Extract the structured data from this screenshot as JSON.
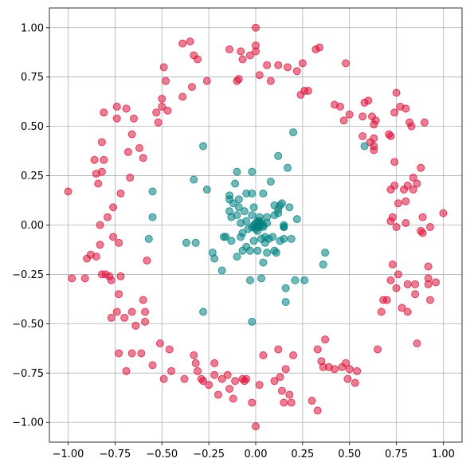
{
  "chart_data": {
    "type": "scatter",
    "title": "",
    "xlabel": "",
    "ylabel": "",
    "xlim": [
      -1.1,
      1.1
    ],
    "ylim": [
      -1.1,
      1.1
    ],
    "grid": true,
    "xticks": [
      -1.0,
      -0.75,
      -0.5,
      -0.25,
      0.0,
      0.25,
      0.5,
      0.75,
      1.0
    ],
    "yticks": [
      1.0,
      0.75,
      0.5,
      0.25,
      0.0,
      -0.25,
      -0.5,
      -0.75,
      -1.0
    ],
    "xtick_labels": [
      "−1.00",
      "−0.75",
      "−0.50",
      "−0.25",
      "0.00",
      "0.25",
      "0.50",
      "0.75",
      "1.00"
    ],
    "ytick_labels": [
      "1.00",
      "0.75",
      "0.50",
      "0.25",
      "0.00",
      "−0.25",
      "−0.50",
      "−0.75",
      "−1.00"
    ],
    "series": [
      {
        "color": "#dc143c",
        "points": [
          [
            -1.0,
            0.17
          ],
          [
            -0.98,
            -0.27
          ],
          [
            -0.91,
            -0.27
          ],
          [
            -0.9,
            -0.17
          ],
          [
            -0.88,
            -0.15
          ],
          [
            -0.86,
            0.33
          ],
          [
            -0.85,
            0.26
          ],
          [
            -0.85,
            -0.16
          ],
          [
            -0.84,
            0.21
          ],
          [
            -0.83,
            0.0
          ],
          [
            -0.83,
            -0.1
          ],
          [
            -0.82,
            0.42
          ],
          [
            -0.82,
            0.27
          ],
          [
            -0.82,
            -0.25
          ],
          [
            -0.81,
            0.57
          ],
          [
            -0.81,
            0.33
          ],
          [
            -0.8,
            -0.25
          ],
          [
            -0.79,
            0.04
          ],
          [
            -0.78,
            -0.26
          ],
          [
            -0.77,
            -0.28
          ],
          [
            -0.77,
            -0.47
          ],
          [
            -0.76,
            0.09
          ],
          [
            -0.76,
            -0.06
          ],
          [
            -0.74,
            0.6
          ],
          [
            -0.74,
            0.54
          ],
          [
            -0.74,
            -0.44
          ],
          [
            -0.73,
            -0.09
          ],
          [
            -0.73,
            -0.35
          ],
          [
            -0.73,
            -0.65
          ],
          [
            -0.72,
            0.16
          ],
          [
            -0.72,
            -0.26
          ],
          [
            -0.7,
            -0.47
          ],
          [
            -0.69,
            0.59
          ],
          [
            -0.69,
            -0.74
          ],
          [
            -0.68,
            0.37
          ],
          [
            -0.67,
            0.24
          ],
          [
            -0.66,
            0.46
          ],
          [
            -0.66,
            -0.44
          ],
          [
            -0.66,
            -0.65
          ],
          [
            -0.65,
            0.54
          ],
          [
            -0.64,
            -0.51
          ],
          [
            -0.62,
            0.39
          ],
          [
            -0.61,
            -0.65
          ],
          [
            -0.6,
            0.34
          ],
          [
            -0.6,
            -0.38
          ],
          [
            -0.59,
            -0.44
          ],
          [
            -0.59,
            -0.49
          ],
          [
            -0.58,
            -0.18
          ],
          [
            -0.55,
            -0.71
          ],
          [
            -0.53,
            0.57
          ],
          [
            -0.52,
            0.52
          ],
          [
            -0.51,
            -0.6
          ],
          [
            -0.5,
            0.64
          ],
          [
            -0.5,
            0.6
          ],
          [
            -0.49,
            0.8
          ],
          [
            -0.49,
            -0.78
          ],
          [
            -0.48,
            0.73
          ],
          [
            -0.47,
            0.58
          ],
          [
            -0.46,
            -0.63
          ],
          [
            -0.45,
            -0.74
          ],
          [
            -0.39,
            0.92
          ],
          [
            -0.39,
            0.65
          ],
          [
            -0.38,
            -0.78
          ],
          [
            -0.35,
            0.93
          ],
          [
            -0.34,
            0.7
          ],
          [
            -0.33,
            0.86
          ],
          [
            -0.33,
            -0.66
          ],
          [
            -0.32,
            -0.7
          ],
          [
            -0.31,
            -0.74
          ],
          [
            -0.31,
            0.84
          ],
          [
            -0.29,
            -0.78
          ],
          [
            -0.28,
            -0.79
          ],
          [
            -0.26,
            0.73
          ],
          [
            -0.25,
            -0.81
          ],
          [
            -0.22,
            -0.7
          ],
          [
            -0.22,
            -0.76
          ],
          [
            -0.2,
            -0.86
          ],
          [
            -0.18,
            -0.78
          ],
          [
            -0.15,
            -0.76
          ],
          [
            -0.14,
            -0.83
          ],
          [
            -0.14,
            0.89
          ],
          [
            -0.12,
            -0.88
          ],
          [
            -0.11,
            -0.79
          ],
          [
            -0.1,
            0.73
          ],
          [
            -0.09,
            0.74
          ],
          [
            -0.08,
            0.88
          ],
          [
            -0.07,
            0.84
          ],
          [
            -0.07,
            -0.78
          ],
          [
            -0.06,
            -0.79
          ],
          [
            -0.05,
            -0.78
          ],
          [
            -0.03,
            0.86
          ],
          [
            -0.02,
            -0.9
          ],
          [
            0.0,
            0.88
          ],
          [
            0.0,
            0.91
          ],
          [
            0.0,
            -1.02
          ],
          [
            0.0,
            1.0
          ],
          [
            0.02,
            -0.81
          ],
          [
            0.02,
            0.76
          ],
          [
            0.04,
            -0.66
          ],
          [
            0.06,
            0.81
          ],
          [
            0.08,
            0.73
          ],
          [
            0.1,
            -0.79
          ],
          [
            0.12,
            -0.63
          ],
          [
            0.12,
            0.81
          ],
          [
            0.13,
            -0.77
          ],
          [
            0.14,
            -0.84
          ],
          [
            0.15,
            -0.9
          ],
          [
            0.16,
            -0.73
          ],
          [
            0.17,
            0.8
          ],
          [
            0.18,
            -0.86
          ],
          [
            0.19,
            -0.9
          ],
          [
            0.2,
            -0.66
          ],
          [
            0.22,
            0.78
          ],
          [
            0.24,
            0.66
          ],
          [
            0.25,
            0.82
          ],
          [
            0.26,
            0.68
          ],
          [
            0.28,
            0.68
          ],
          [
            0.3,
            -0.89
          ],
          [
            0.32,
            0.89
          ],
          [
            0.33,
            -0.63
          ],
          [
            0.33,
            -0.94
          ],
          [
            0.34,
            0.9
          ],
          [
            0.35,
            -0.69
          ],
          [
            0.36,
            -0.72
          ],
          [
            0.37,
            -0.58
          ],
          [
            0.39,
            -0.72
          ],
          [
            0.42,
            -0.73
          ],
          [
            0.42,
            0.61
          ],
          [
            0.45,
            0.6
          ],
          [
            0.46,
            -0.72
          ],
          [
            0.47,
            0.53
          ],
          [
            0.48,
            -0.7
          ],
          [
            0.48,
            0.82
          ],
          [
            0.49,
            -0.78
          ],
          [
            0.5,
            0.56
          ],
          [
            0.5,
            -0.73
          ],
          [
            0.53,
            -0.8
          ],
          [
            0.54,
            -0.74
          ],
          [
            0.57,
            0.55
          ],
          [
            0.57,
            0.45
          ],
          [
            0.58,
            0.62
          ],
          [
            0.6,
            0.63
          ],
          [
            0.61,
            0.42
          ],
          [
            0.62,
            0.55
          ],
          [
            0.63,
            0.51
          ],
          [
            0.63,
            0.4
          ],
          [
            0.63,
            0.44
          ],
          [
            0.63,
            0.38
          ],
          [
            0.64,
            0.53
          ],
          [
            0.65,
            -0.63
          ],
          [
            0.67,
            -0.44
          ],
          [
            0.68,
            -0.38
          ],
          [
            0.7,
            -0.38
          ],
          [
            0.71,
            0.46
          ],
          [
            0.72,
            0.18
          ],
          [
            0.72,
            -0.28
          ],
          [
            0.72,
            0.45
          ],
          [
            0.72,
            0.02
          ],
          [
            0.73,
            0.04
          ],
          [
            0.73,
            -0.2
          ],
          [
            0.74,
            0.57
          ],
          [
            0.74,
            0.2
          ],
          [
            0.74,
            0.32
          ],
          [
            0.75,
            -0.01
          ],
          [
            0.75,
            -0.32
          ],
          [
            0.75,
            0.67
          ],
          [
            0.76,
            0.11
          ],
          [
            0.76,
            -0.25
          ],
          [
            0.77,
            0.6
          ],
          [
            0.78,
            -0.42
          ],
          [
            0.79,
            0.18
          ],
          [
            0.8,
            0.59
          ],
          [
            0.8,
            0.12
          ],
          [
            0.8,
            0.01
          ],
          [
            0.81,
            -0.3
          ],
          [
            0.81,
            -0.44
          ],
          [
            0.81,
            0.2
          ],
          [
            0.82,
            0.52
          ],
          [
            0.83,
            0.5
          ],
          [
            0.84,
            0.24
          ],
          [
            0.84,
            0.18
          ],
          [
            0.85,
            -0.35
          ],
          [
            0.85,
            -0.3
          ],
          [
            0.86,
            0.21
          ],
          [
            0.86,
            -0.6
          ],
          [
            0.88,
            0.29
          ],
          [
            0.88,
            -0.03
          ],
          [
            0.89,
            -0.04
          ],
          [
            0.89,
            0.04
          ],
          [
            0.9,
            0.52
          ],
          [
            0.92,
            -0.21
          ],
          [
            0.92,
            -0.27
          ],
          [
            0.92,
            -0.3
          ],
          [
            0.93,
            -0.01
          ],
          [
            0.93,
            -0.38
          ],
          [
            0.96,
            -0.29
          ],
          [
            1.0,
            0.06
          ]
        ]
      },
      {
        "color": "#008080",
        "points": [
          [
            -0.57,
            -0.07
          ],
          [
            -0.55,
            0.04
          ],
          [
            -0.55,
            0.17
          ],
          [
            -0.37,
            -0.09
          ],
          [
            -0.33,
            0.23
          ],
          [
            -0.32,
            -0.09
          ],
          [
            -0.26,
            0.18
          ],
          [
            -0.28,
            0.4
          ],
          [
            -0.28,
            -0.44
          ],
          [
            -0.23,
            -0.14
          ],
          [
            -0.22,
            -0.17
          ],
          [
            -0.18,
            -0.23
          ],
          [
            -0.17,
            -0.06
          ],
          [
            -0.16,
            -0.06
          ],
          [
            -0.14,
            0.15
          ],
          [
            -0.14,
            0.13
          ],
          [
            -0.14,
            0.07
          ],
          [
            -0.13,
            -0.08
          ],
          [
            -0.13,
            0.04
          ],
          [
            -0.12,
            0.11
          ],
          [
            -0.11,
            0.21
          ],
          [
            -0.1,
            0.27
          ],
          [
            -0.1,
            -0.16
          ],
          [
            -0.1,
            0.05
          ],
          [
            -0.09,
            0.13
          ],
          [
            -0.09,
            0.09
          ],
          [
            -0.08,
            0.01
          ],
          [
            -0.08,
            -0.06
          ],
          [
            -0.07,
            -0.13
          ],
          [
            -0.07,
            -0.04
          ],
          [
            -0.06,
            0.07
          ],
          [
            -0.05,
            0.16
          ],
          [
            -0.05,
            0.02
          ],
          [
            -0.05,
            -0.11
          ],
          [
            -0.04,
            -0.02
          ],
          [
            -0.03,
            -0.13
          ],
          [
            -0.03,
            -0.28
          ],
          [
            -0.02,
            0.27
          ],
          [
            -0.02,
            0.16
          ],
          [
            -0.02,
            0.05
          ],
          [
            -0.02,
            -0.01
          ],
          [
            -0.02,
            -0.49
          ],
          [
            -0.01,
            0.09
          ],
          [
            -0.01,
            0.0
          ],
          [
            -0.01,
            -0.08
          ],
          [
            0.0,
            -0.01
          ],
          [
            0.0,
            0.01
          ],
          [
            0.0,
            -0.02
          ],
          [
            0.01,
            0.02
          ],
          [
            0.01,
            0.0
          ],
          [
            0.01,
            -0.03
          ],
          [
            0.01,
            -0.13
          ],
          [
            0.02,
            0.02
          ],
          [
            0.02,
            0.0
          ],
          [
            0.02,
            -0.01
          ],
          [
            0.02,
            0.04
          ],
          [
            0.03,
            -0.07
          ],
          [
            0.03,
            -0.27
          ],
          [
            0.03,
            0.01
          ],
          [
            0.04,
            -0.01
          ],
          [
            0.04,
            0.0
          ],
          [
            0.04,
            0.16
          ],
          [
            0.04,
            -0.19
          ],
          [
            0.05,
            -0.06
          ],
          [
            0.05,
            -0.09
          ],
          [
            0.06,
            0.04
          ],
          [
            0.06,
            0.01
          ],
          [
            0.06,
            -0.14
          ],
          [
            0.07,
            -0.07
          ],
          [
            0.08,
            0.22
          ],
          [
            0.09,
            -0.06
          ],
          [
            0.1,
            0.1
          ],
          [
            0.1,
            -0.13
          ],
          [
            0.1,
            0.05
          ],
          [
            0.11,
            -0.14
          ],
          [
            0.12,
            0.06
          ],
          [
            0.12,
            0.35
          ],
          [
            0.12,
            0.08
          ],
          [
            0.13,
            0.1
          ],
          [
            0.13,
            -0.08
          ],
          [
            0.14,
            0.11
          ],
          [
            0.15,
            -0.07
          ],
          [
            0.15,
            -0.01
          ],
          [
            0.15,
            0.0
          ],
          [
            0.15,
            -0.01
          ],
          [
            0.16,
            -0.39
          ],
          [
            0.16,
            -0.32
          ],
          [
            0.17,
            0.29
          ],
          [
            0.18,
            0.09
          ],
          [
            0.19,
            -0.07
          ],
          [
            0.2,
            0.47
          ],
          [
            0.21,
            -0.28
          ],
          [
            0.22,
            0.03
          ],
          [
            0.26,
            -0.28
          ],
          [
            0.36,
            -0.2
          ],
          [
            0.37,
            -0.14
          ],
          [
            0.58,
            0.4
          ]
        ]
      }
    ]
  }
}
